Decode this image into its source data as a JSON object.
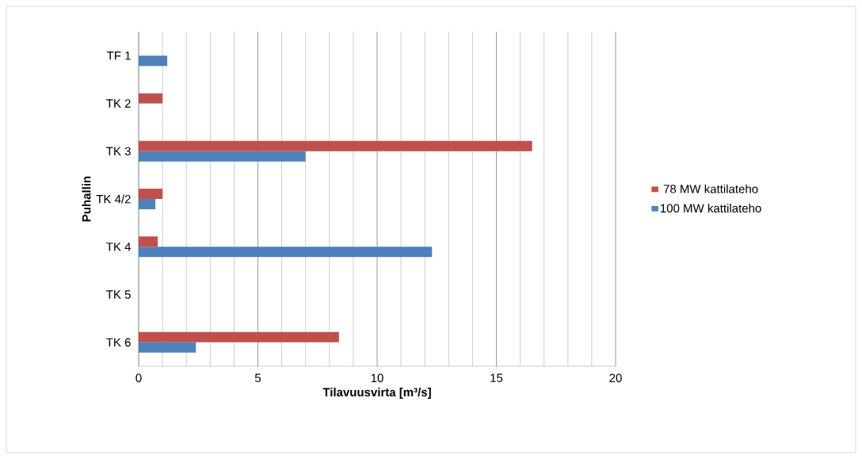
{
  "chart_data": {
    "type": "bar",
    "orientation": "horizontal",
    "xlabel": "Tilavuusvirta [m³/s]",
    "ylabel": "Puhallin",
    "categories": [
      "TF 1",
      "TK 2",
      "TK 3",
      "TK 4/2",
      "TK 4",
      "TK 5",
      "TK 6"
    ],
    "series": [
      {
        "name": "100 MW kattilateho",
        "color": "#4f81bd",
        "values": [
          1.2,
          null,
          7.0,
          0.7,
          12.3,
          null,
          2.4
        ]
      },
      {
        "name": "78 MW kattilateho",
        "color": "#c0504d",
        "values": [
          null,
          1.0,
          16.5,
          1.0,
          0.8,
          null,
          8.4
        ]
      }
    ],
    "xlim": [
      0,
      20
    ],
    "xticks": [
      0,
      {
        "value": 1,
        "label": null
      },
      {
        "value": 2,
        "label": null
      },
      {
        "value": 3,
        "label": null
      },
      {
        "value": 4,
        "label": null
      },
      5,
      {
        "value": 6,
        "label": null
      },
      {
        "value": 7,
        "label": null
      },
      {
        "value": 8,
        "label": null
      },
      {
        "value": 9,
        "label": null
      },
      10,
      {
        "value": 11,
        "label": null
      },
      {
        "value": 12,
        "label": null
      },
      {
        "value": 13,
        "label": null
      },
      {
        "value": 14,
        "label": null
      },
      15,
      {
        "value": 16,
        "label": null
      },
      {
        "value": 17,
        "label": null
      },
      {
        "value": 18,
        "label": null
      },
      {
        "value": 19,
        "label": null
      },
      20
    ],
    "grid": "x",
    "legend": "right"
  }
}
